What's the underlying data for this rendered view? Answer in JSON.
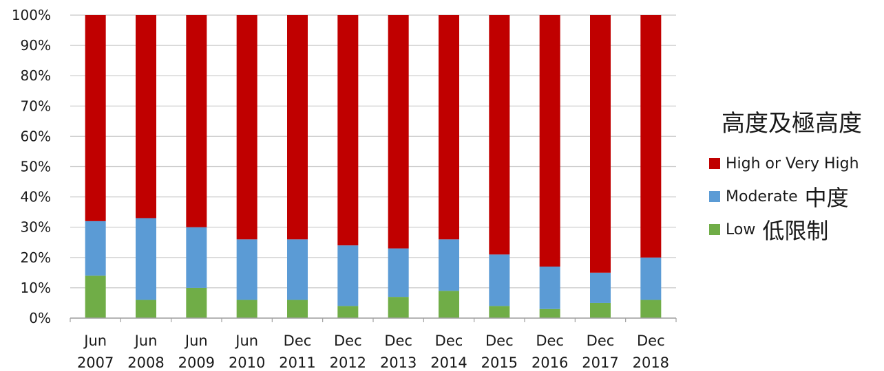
{
  "chart_data": {
    "type": "bar",
    "stacked": true,
    "categories": [
      [
        "Jun",
        "2007"
      ],
      [
        "Jun",
        "2008"
      ],
      [
        "Jun",
        "2009"
      ],
      [
        "Jun",
        "2010"
      ],
      [
        "Dec",
        "2011"
      ],
      [
        "Dec",
        "2012"
      ],
      [
        "Dec",
        "2013"
      ],
      [
        "Dec",
        "2014"
      ],
      [
        "Dec",
        "2015"
      ],
      [
        "Dec",
        "2016"
      ],
      [
        "Dec",
        "2017"
      ],
      [
        "Dec",
        "2018"
      ]
    ],
    "series": [
      {
        "name": "Low",
        "name_zh": "低限制",
        "color": "#70ad47",
        "values": [
          14,
          6,
          10,
          6,
          6,
          4,
          7,
          9,
          4,
          3,
          5,
          6
        ]
      },
      {
        "name": "Moderate",
        "name_zh": "中度",
        "color": "#5b9bd5",
        "values": [
          18,
          27,
          20,
          20,
          20,
          20,
          16,
          17,
          17,
          14,
          10,
          14
        ]
      },
      {
        "name": "High or Very High",
        "name_zh": "",
        "color": "#c00000",
        "values": [
          68,
          67,
          70,
          74,
          74,
          76,
          77,
          74,
          79,
          83,
          85,
          80
        ]
      }
    ],
    "ylim": [
      0,
      100
    ],
    "yticks": [
      "0%",
      "10%",
      "20%",
      "30%",
      "40%",
      "50%",
      "60%",
      "70%",
      "80%",
      "90%",
      "100%"
    ],
    "grid": true,
    "legend": {
      "position": "right",
      "title": "高度及極高度",
      "order": [
        "High or Very High",
        "Moderate",
        "Low"
      ]
    }
  }
}
